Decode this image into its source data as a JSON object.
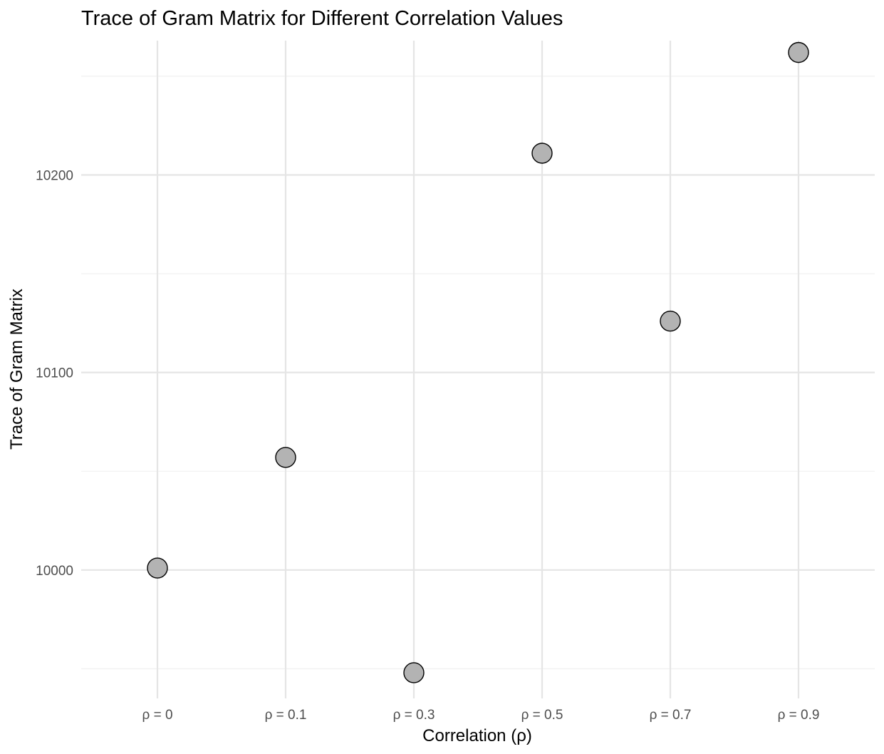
{
  "chart_data": {
    "type": "scatter",
    "title": "Trace of Gram Matrix for Different Correlation Values",
    "xlabel": "Correlation (ρ)",
    "ylabel": "Trace of Gram Matrix",
    "categories": [
      "ρ = 0",
      "ρ = 0.1",
      "ρ = 0.3",
      "ρ = 0.5",
      "ρ = 0.7",
      "ρ = 0.9"
    ],
    "values": [
      10001,
      10057,
      9948,
      10211,
      10126,
      10262
    ],
    "y_ticks": [
      10000,
      10100,
      10200
    ],
    "y_tick_labels": [
      "10000",
      "10100",
      "10200"
    ],
    "ylim": [
      9935,
      10268
    ],
    "grid": true,
    "legend": "none",
    "colors": {
      "point_fill": "#b3b3b3",
      "point_stroke": "#000000",
      "grid": "#e5e5e5",
      "background": "#ffffff"
    }
  }
}
